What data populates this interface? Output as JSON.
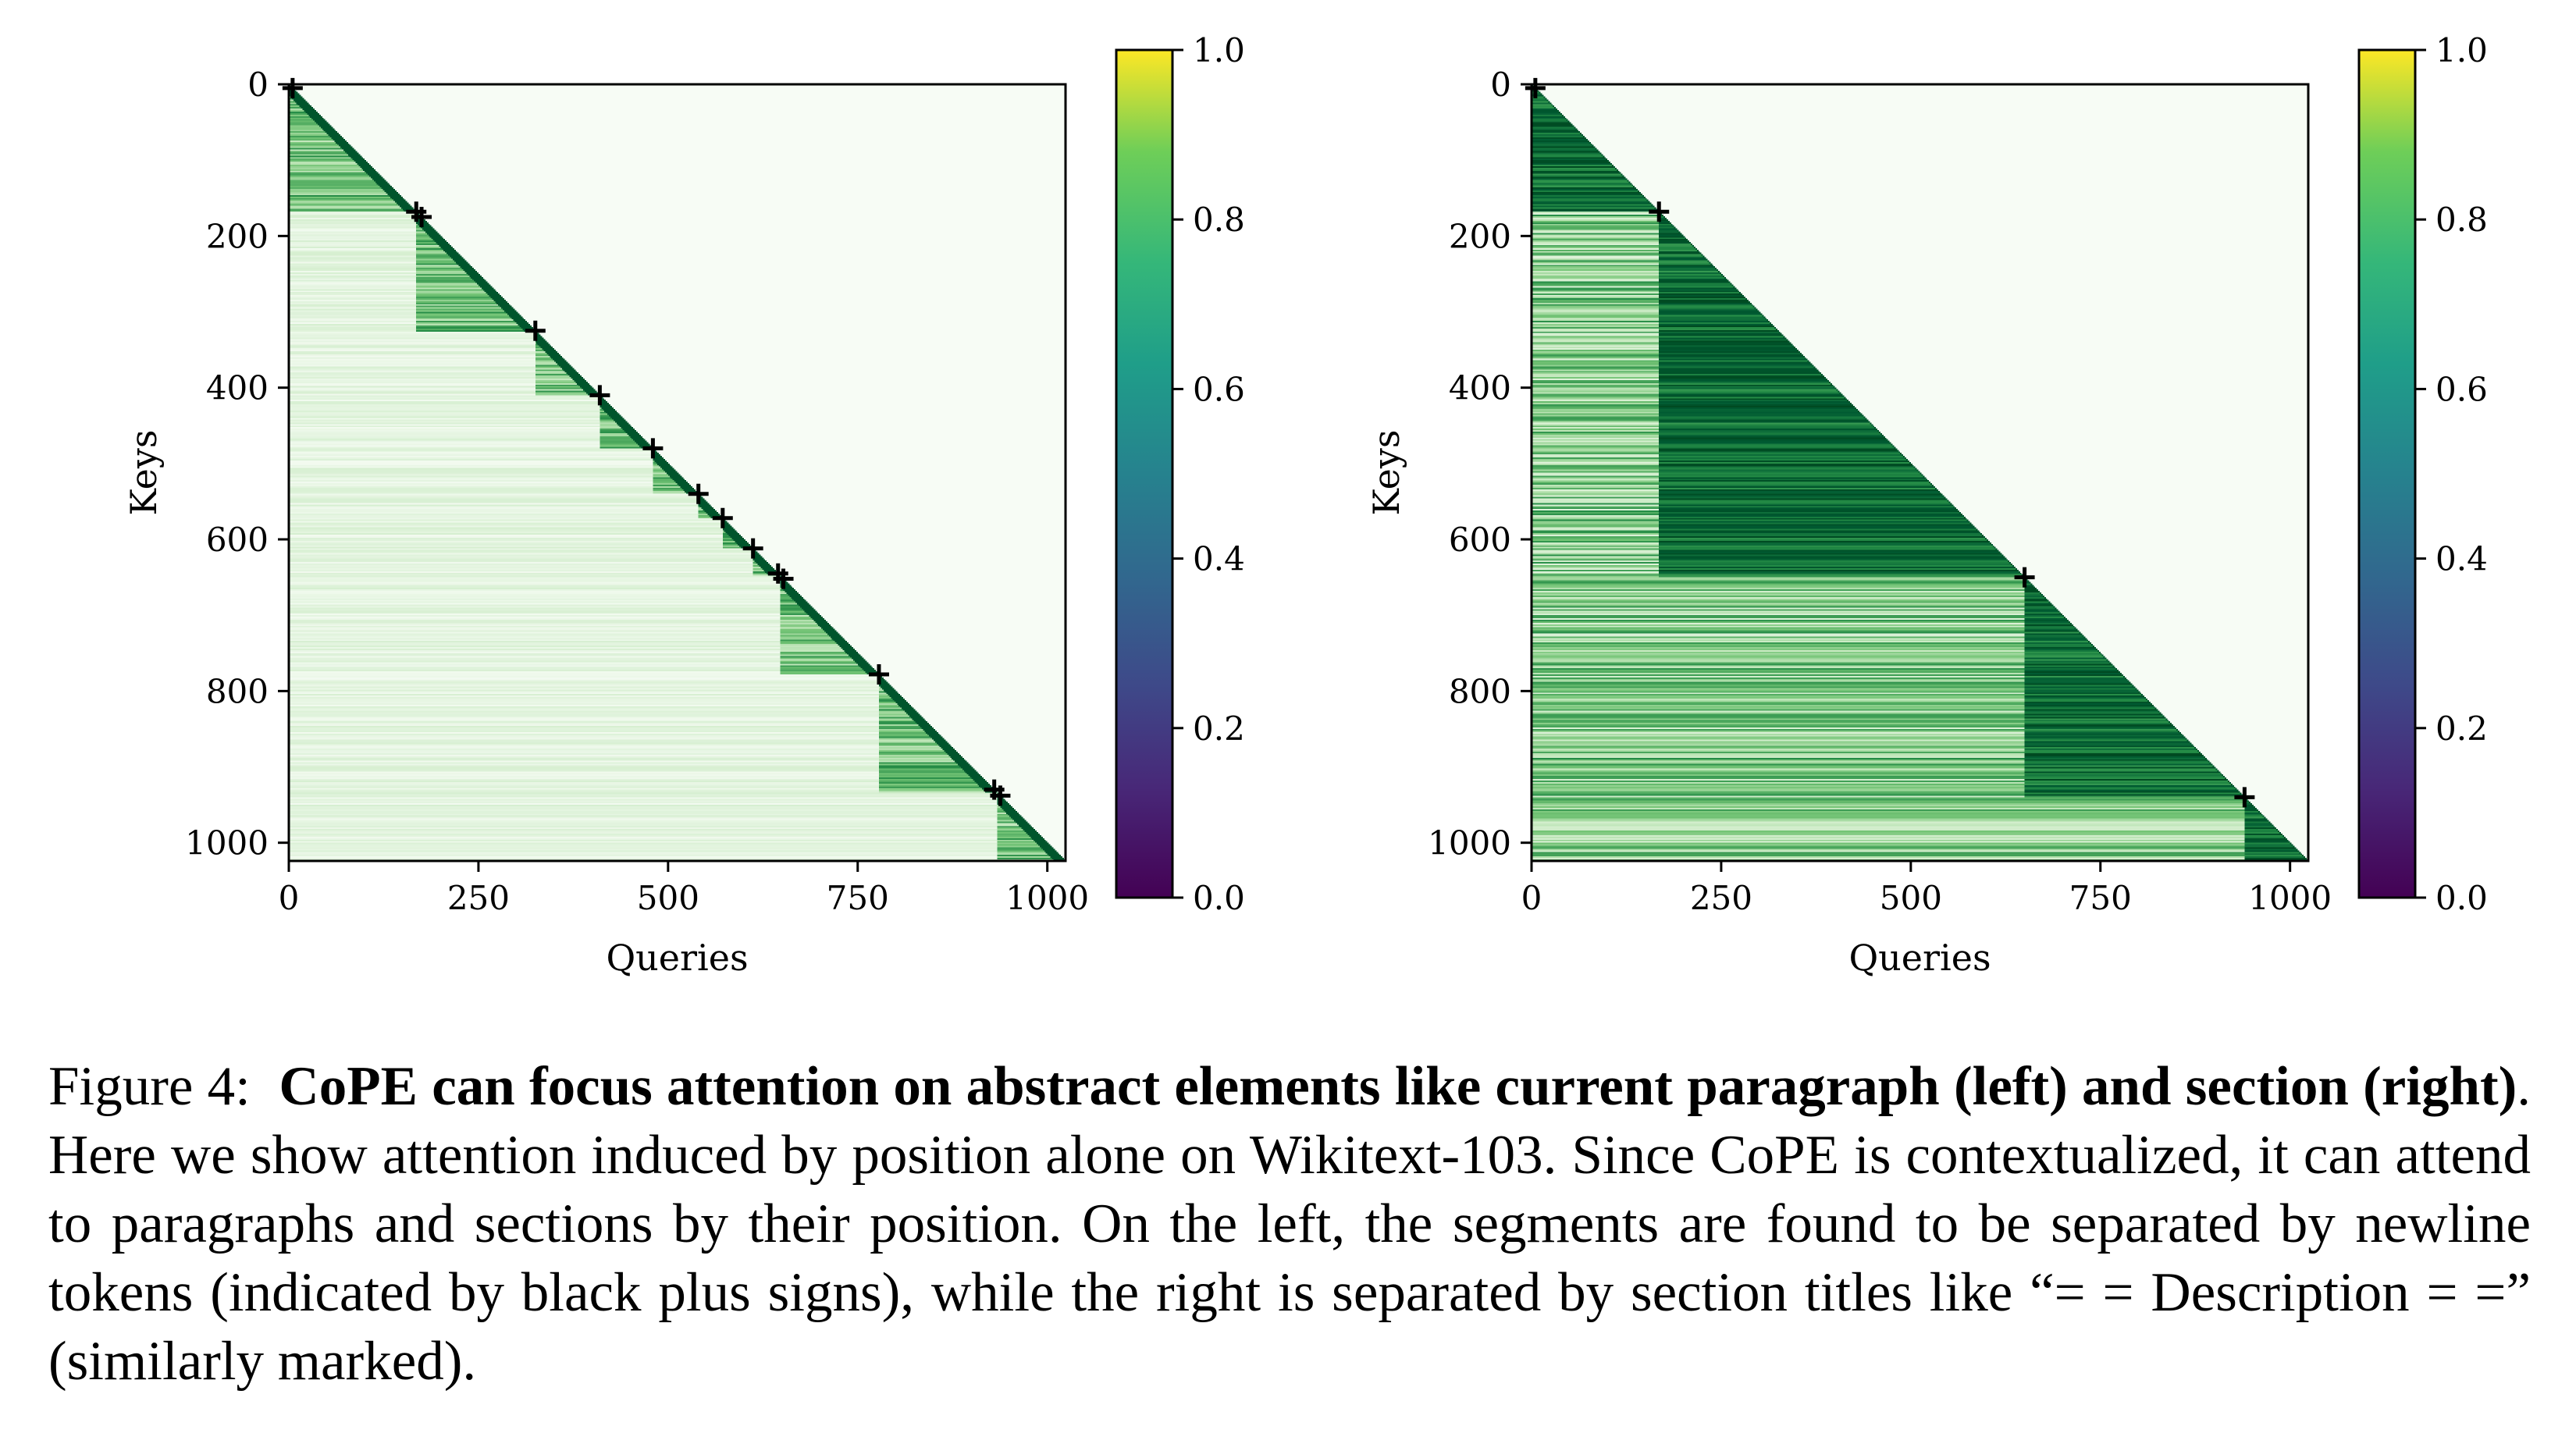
{
  "chart_data": [
    {
      "type": "heatmap",
      "panel": "left",
      "xlabel": "Queries",
      "ylabel": "Keys",
      "xlim": [
        0,
        1024
      ],
      "ylim": [
        1024,
        0
      ],
      "x_ticks": [
        0,
        250,
        500,
        750,
        1000
      ],
      "y_ticks": [
        0,
        200,
        400,
        600,
        800,
        1000
      ],
      "mask": "lower-triangular (keys >= queries)",
      "colormap": "Greens",
      "markers": {
        "symbol": "+",
        "color": "#000000",
        "meaning": "newline tokens",
        "positions": [
          5,
          168,
          175,
          325,
          410,
          480,
          540,
          572,
          612,
          645,
          652,
          778,
          930,
          938
        ]
      },
      "segments": [
        {
          "start": 0,
          "end": 168
        },
        {
          "start": 168,
          "end": 325
        },
        {
          "start": 325,
          "end": 410
        },
        {
          "start": 410,
          "end": 480
        },
        {
          "start": 480,
          "end": 540
        },
        {
          "start": 540,
          "end": 572
        },
        {
          "start": 572,
          "end": 612
        },
        {
          "start": 612,
          "end": 648
        },
        {
          "start": 648,
          "end": 778
        },
        {
          "start": 778,
          "end": 934
        },
        {
          "start": 934,
          "end": 1024
        }
      ],
      "colorbar": {
        "range": [
          0.0,
          1.0
        ],
        "ticks": [
          "0.0",
          "0.2",
          "0.4",
          "0.6",
          "0.8",
          "1.0"
        ],
        "colormap": "viridis"
      }
    },
    {
      "type": "heatmap",
      "panel": "right",
      "xlabel": "Queries",
      "ylabel": "Keys",
      "xlim": [
        0,
        1024
      ],
      "ylim": [
        1024,
        0
      ],
      "x_ticks": [
        0,
        250,
        500,
        750,
        1000
      ],
      "y_ticks": [
        0,
        200,
        400,
        600,
        800,
        1000
      ],
      "mask": "lower-triangular (keys >= queries)",
      "colormap": "Greens",
      "markers": {
        "symbol": "+",
        "color": "#000000",
        "meaning": "section titles",
        "positions": [
          5,
          168,
          650,
          940
        ]
      },
      "segments": [
        {
          "start": 0,
          "end": 168
        },
        {
          "start": 168,
          "end": 650
        },
        {
          "start": 650,
          "end": 940
        },
        {
          "start": 940,
          "end": 1024
        }
      ],
      "colorbar": {
        "range": [
          0.0,
          1.0
        ],
        "ticks": [
          "0.0",
          "0.2",
          "0.4",
          "0.6",
          "0.8",
          "1.0"
        ],
        "colormap": "viridis"
      }
    }
  ],
  "caption": {
    "label": "Figure 4:",
    "bold": "CoPE can focus attention on abstract elements like current paragraph (left) and section (right)",
    "rest": ". Here we show attention induced by position alone on Wikitext-103. Since CoPE is contextualized, it can attend to paragraphs and sections by their position. On the left, the segments are found to be separated by newline tokens (indicated by black plus signs), while the right is separated by section titles like “= = Description = =” (similarly marked)."
  }
}
